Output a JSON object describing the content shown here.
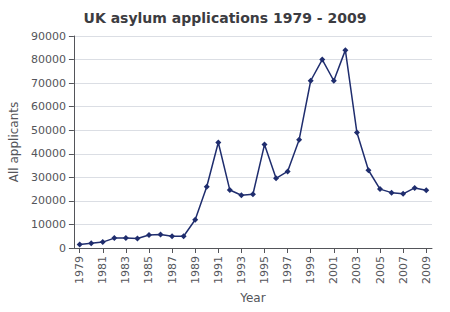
{
  "chart_data": {
    "type": "line",
    "title": "UK asylum applications 1979 - 2009",
    "xlabel": "Year",
    "ylabel": "All applicants",
    "x": [
      1979,
      1980,
      1981,
      1982,
      1983,
      1984,
      1985,
      1986,
      1987,
      1988,
      1989,
      1990,
      1991,
      1992,
      1993,
      1994,
      1995,
      1996,
      1997,
      1998,
      1999,
      2000,
      2001,
      2002,
      2003,
      2004,
      2005,
      2006,
      2007,
      2008,
      2009
    ],
    "values": [
      1500,
      2000,
      2500,
      4200,
      4200,
      4000,
      5500,
      5700,
      5000,
      5000,
      12000,
      26000,
      44800,
      24600,
      22400,
      22800,
      43900,
      29600,
      32500,
      46000,
      71000,
      80000,
      71000,
      84000,
      49000,
      33000,
      25000,
      23500,
      23000,
      25500,
      24500
    ],
    "color": "#1f2d6e",
    "marker": "diamond",
    "xlim": [
      1978.5,
      2009.5
    ],
    "xticks": [
      1979,
      1981,
      1983,
      1985,
      1987,
      1989,
      1991,
      1993,
      1995,
      1997,
      1999,
      2001,
      2003,
      2005,
      2007,
      2009
    ],
    "ylim": [
      0,
      90000
    ],
    "yticks": [
      0,
      10000,
      20000,
      30000,
      40000,
      50000,
      60000,
      70000,
      80000,
      90000
    ],
    "grid": true
  }
}
